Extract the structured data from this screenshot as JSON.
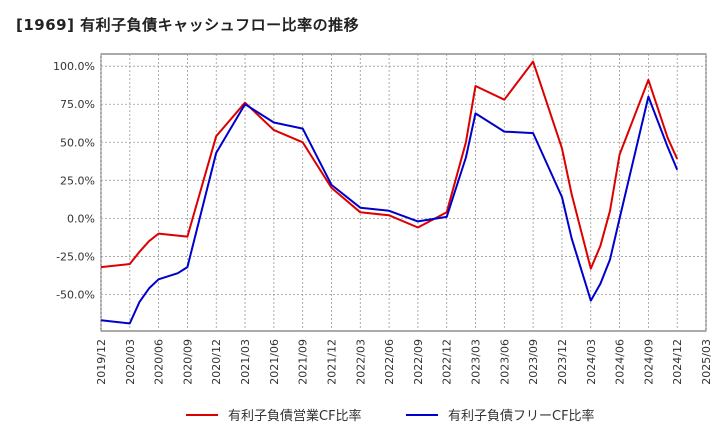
{
  "chart_data": {
    "type": "line",
    "title": "[1969]  有利子負債キャッシュフロー比率の推移",
    "x": [
      "2019/12",
      "2020/03",
      "2020/06",
      "2020/09",
      "2020/12",
      "2021/03",
      "2021/06",
      "2021/09",
      "2021/12",
      "2022/03",
      "2022/06",
      "2022/09",
      "2022/12",
      "2023/03",
      "2023/06",
      "2023/09",
      "2023/12",
      "2024/03",
      "2024/06",
      "2024/09",
      "2024/12",
      "2025/03"
    ],
    "x_ticks": [
      "2019/12",
      "2020/03",
      "2020/06",
      "2020/09",
      "2020/12",
      "2021/03",
      "2021/06",
      "2021/09",
      "2021/12",
      "2022/03",
      "2022/06",
      "2022/09",
      "2022/12",
      "2023/03",
      "2023/06",
      "2023/09",
      "2023/12",
      "2024/03",
      "2024/06",
      "2024/09",
      "2024/12",
      "2025/03"
    ],
    "y_ticks": [
      100,
      75,
      50,
      25,
      0,
      -25,
      -50
    ],
    "y_tick_labels": [
      "100.0%",
      "75.0%",
      "50.0%",
      "25.0%",
      "0.0%",
      "-25.0%",
      "-50.0%"
    ],
    "ylim": [
      -74,
      108
    ],
    "grid": true,
    "legend_position": "bottom",
    "series": [
      {
        "name": "有利子負債営業CF比率",
        "color": "#dd0000",
        "points": [
          [
            "2019/12",
            -32
          ],
          [
            "2020/03",
            -30
          ],
          [
            "2020/04",
            -22
          ],
          [
            "2020/05",
            -15
          ],
          [
            "2020/06",
            -10
          ],
          [
            "2020/09",
            -12
          ],
          [
            "2020/12",
            54
          ],
          [
            "2021/03",
            76
          ],
          [
            "2021/06",
            58
          ],
          [
            "2021/09",
            50
          ],
          [
            "2021/12",
            20
          ],
          [
            "2022/03",
            4
          ],
          [
            "2022/06",
            2
          ],
          [
            "2022/09",
            -6
          ],
          [
            "2022/12",
            4
          ],
          [
            "2023/02",
            50
          ],
          [
            "2023/03",
            87
          ],
          [
            "2023/06",
            78
          ],
          [
            "2023/09",
            103
          ],
          [
            "2023/12",
            46
          ],
          [
            "2024/01",
            16
          ],
          [
            "2024/03",
            -33
          ],
          [
            "2024/04",
            -18
          ],
          [
            "2024/05",
            5
          ],
          [
            "2024/06",
            42
          ],
          [
            "2024/09",
            91
          ],
          [
            "2024/11",
            53
          ],
          [
            "2024/12",
            39
          ]
        ]
      },
      {
        "name": "有利子負債フリーCF比率",
        "color": "#0000cc",
        "points": [
          [
            "2019/12",
            -67
          ],
          [
            "2020/03",
            -69
          ],
          [
            "2020/04",
            -55
          ],
          [
            "2020/05",
            -46
          ],
          [
            "2020/06",
            -40
          ],
          [
            "2020/08",
            -36
          ],
          [
            "2020/09",
            -32
          ],
          [
            "2020/12",
            43
          ],
          [
            "2021/03",
            75
          ],
          [
            "2021/06",
            63
          ],
          [
            "2021/09",
            59
          ],
          [
            "2021/12",
            22
          ],
          [
            "2022/03",
            7
          ],
          [
            "2022/06",
            5
          ],
          [
            "2022/09",
            -2
          ],
          [
            "2022/12",
            1
          ],
          [
            "2023/02",
            40
          ],
          [
            "2023/03",
            69
          ],
          [
            "2023/06",
            57
          ],
          [
            "2023/09",
            56
          ],
          [
            "2023/12",
            14
          ],
          [
            "2024/01",
            -13
          ],
          [
            "2024/03",
            -54
          ],
          [
            "2024/04",
            -43
          ],
          [
            "2024/05",
            -27
          ],
          [
            "2024/06",
            0
          ],
          [
            "2024/09",
            80
          ],
          [
            "2024/11",
            47
          ],
          [
            "2024/12",
            32
          ]
        ]
      }
    ]
  }
}
